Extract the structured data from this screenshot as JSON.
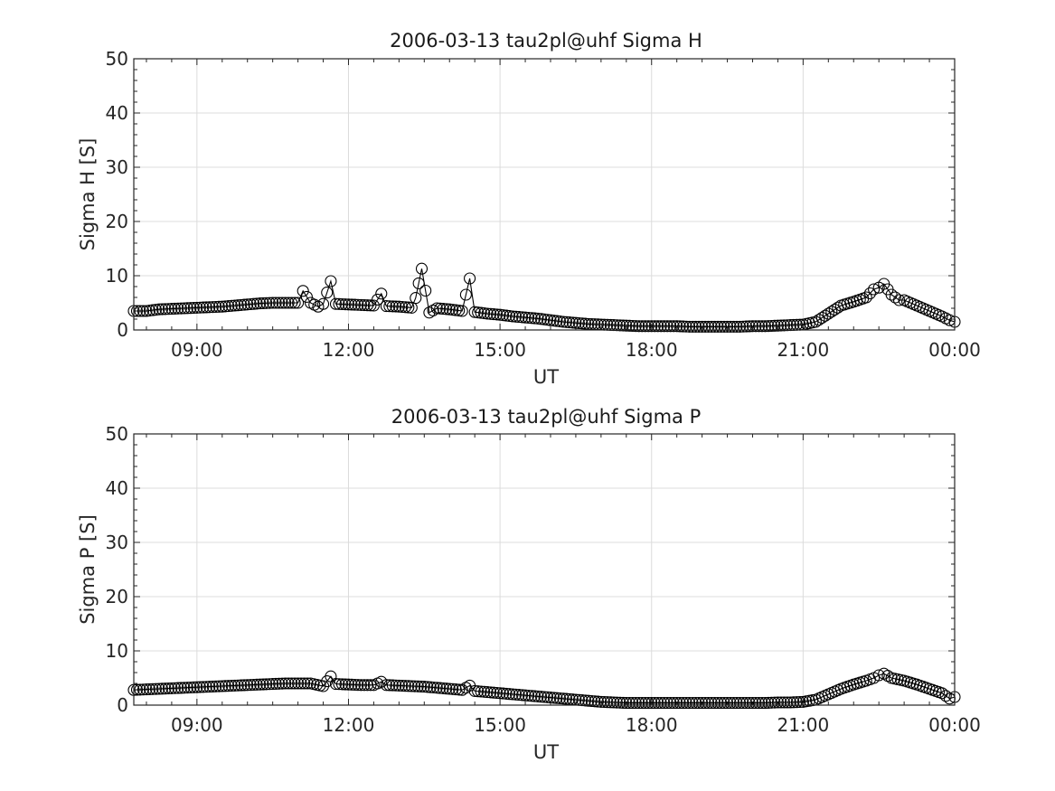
{
  "chart_data": [
    {
      "type": "line",
      "title": "2006-03-13  tau2pl@uhf Sigma H",
      "xlabel": "UT",
      "ylabel": "Sigma H [S]",
      "xlim_hours": [
        7.75,
        24.0
      ],
      "ylim": [
        0,
        50
      ],
      "xticks": [
        9,
        12,
        15,
        18,
        21,
        24
      ],
      "xtick_labels": [
        "09:00",
        "12:00",
        "15:00",
        "18:00",
        "21:00",
        "00:00"
      ],
      "yticks": [
        0,
        10,
        20,
        30,
        40,
        50
      ],
      "ytick_labels": [
        "0",
        "10",
        "20",
        "30",
        "40",
        "50"
      ],
      "grid": true,
      "marker": "open-circle",
      "line_color": "#000000",
      "series": [
        {
          "x_hours": [
            7.75,
            8.0,
            8.25,
            8.5,
            8.75,
            9.0,
            9.25,
            9.5,
            9.75,
            10.0,
            10.25,
            10.5,
            10.75,
            11.0,
            11.1,
            11.25,
            11.4,
            11.5,
            11.65,
            11.75,
            12.0,
            12.25,
            12.5,
            12.65,
            12.75,
            13.0,
            13.25,
            13.33,
            13.45,
            13.6,
            13.75,
            14.0,
            14.25,
            14.4,
            14.5,
            14.75,
            15.0,
            15.25,
            15.5,
            15.75,
            16.0,
            16.25,
            16.5,
            16.75,
            17.0,
            17.25,
            17.5,
            17.75,
            18.0,
            18.25,
            18.5,
            18.75,
            19.0,
            19.25,
            19.5,
            19.75,
            20.0,
            20.25,
            20.5,
            20.75,
            21.0,
            21.25,
            21.5,
            21.75,
            22.0,
            22.25,
            22.4,
            22.5,
            22.6,
            22.75,
            22.9,
            23.0,
            23.25,
            23.5,
            23.75,
            23.9,
            24.0
          ],
          "y": [
            3.5,
            3.5,
            3.8,
            3.9,
            4.0,
            4.1,
            4.2,
            4.3,
            4.5,
            4.7,
            4.9,
            5.0,
            5.0,
            5.0,
            7.2,
            5.0,
            4.3,
            4.8,
            9.0,
            4.8,
            4.7,
            4.6,
            4.5,
            6.7,
            4.4,
            4.3,
            4.1,
            5.9,
            11.3,
            3.2,
            4.0,
            3.8,
            3.5,
            9.5,
            3.3,
            3.0,
            2.8,
            2.5,
            2.3,
            2.1,
            1.8,
            1.5,
            1.3,
            1.1,
            1.0,
            0.9,
            0.8,
            0.7,
            0.7,
            0.7,
            0.7,
            0.6,
            0.6,
            0.6,
            0.6,
            0.6,
            0.7,
            0.7,
            0.8,
            0.9,
            1.0,
            1.5,
            3.0,
            4.5,
            5.2,
            6.0,
            7.5,
            7.8,
            8.5,
            6.5,
            5.5,
            5.5,
            4.5,
            3.5,
            2.5,
            1.8,
            1.5
          ]
        }
      ]
    },
    {
      "type": "line",
      "title": "2006-03-13  tau2pl@uhf Sigma P",
      "xlabel": "UT",
      "ylabel": "Sigma P [S]",
      "xlim_hours": [
        7.75,
        24.0
      ],
      "ylim": [
        0,
        50
      ],
      "xticks": [
        9,
        12,
        15,
        18,
        21,
        24
      ],
      "xtick_labels": [
        "09:00",
        "12:00",
        "15:00",
        "18:00",
        "21:00",
        "00:00"
      ],
      "yticks": [
        0,
        10,
        20,
        30,
        40,
        50
      ],
      "ytick_labels": [
        "0",
        "10",
        "20",
        "30",
        "40",
        "50"
      ],
      "grid": true,
      "marker": "open-circle",
      "line_color": "#000000",
      "series": [
        {
          "x_hours": [
            7.75,
            8.0,
            8.25,
            8.5,
            8.75,
            9.0,
            9.25,
            9.5,
            9.75,
            10.0,
            10.25,
            10.5,
            10.75,
            11.0,
            11.25,
            11.5,
            11.65,
            11.75,
            12.0,
            12.25,
            12.5,
            12.65,
            12.75,
            13.0,
            13.25,
            13.5,
            13.75,
            14.0,
            14.25,
            14.4,
            14.5,
            14.75,
            15.0,
            15.25,
            15.5,
            15.75,
            16.0,
            16.25,
            16.5,
            16.75,
            17.0,
            17.25,
            17.5,
            17.75,
            18.0,
            18.25,
            18.5,
            18.75,
            19.0,
            19.25,
            19.5,
            19.75,
            20.0,
            20.25,
            20.5,
            20.75,
            21.0,
            21.25,
            21.5,
            21.75,
            22.0,
            22.25,
            22.4,
            22.5,
            22.6,
            22.75,
            23.0,
            23.25,
            23.5,
            23.75,
            23.9,
            24.0
          ],
          "y": [
            2.8,
            2.9,
            3.0,
            3.1,
            3.2,
            3.3,
            3.4,
            3.5,
            3.6,
            3.7,
            3.8,
            3.9,
            4.0,
            4.0,
            4.0,
            3.5,
            5.3,
            3.9,
            3.8,
            3.7,
            3.7,
            4.3,
            3.7,
            3.6,
            3.5,
            3.4,
            3.2,
            3.0,
            2.8,
            3.6,
            2.6,
            2.4,
            2.2,
            2.0,
            1.8,
            1.6,
            1.4,
            1.2,
            1.0,
            0.8,
            0.6,
            0.5,
            0.4,
            0.4,
            0.4,
            0.4,
            0.4,
            0.4,
            0.4,
            0.4,
            0.4,
            0.4,
            0.4,
            0.4,
            0.5,
            0.5,
            0.6,
            1.0,
            2.0,
            3.0,
            3.8,
            4.5,
            5.0,
            5.5,
            5.8,
            5.0,
            4.5,
            3.8,
            3.0,
            2.2,
            1.2,
            1.5
          ]
        }
      ]
    }
  ]
}
